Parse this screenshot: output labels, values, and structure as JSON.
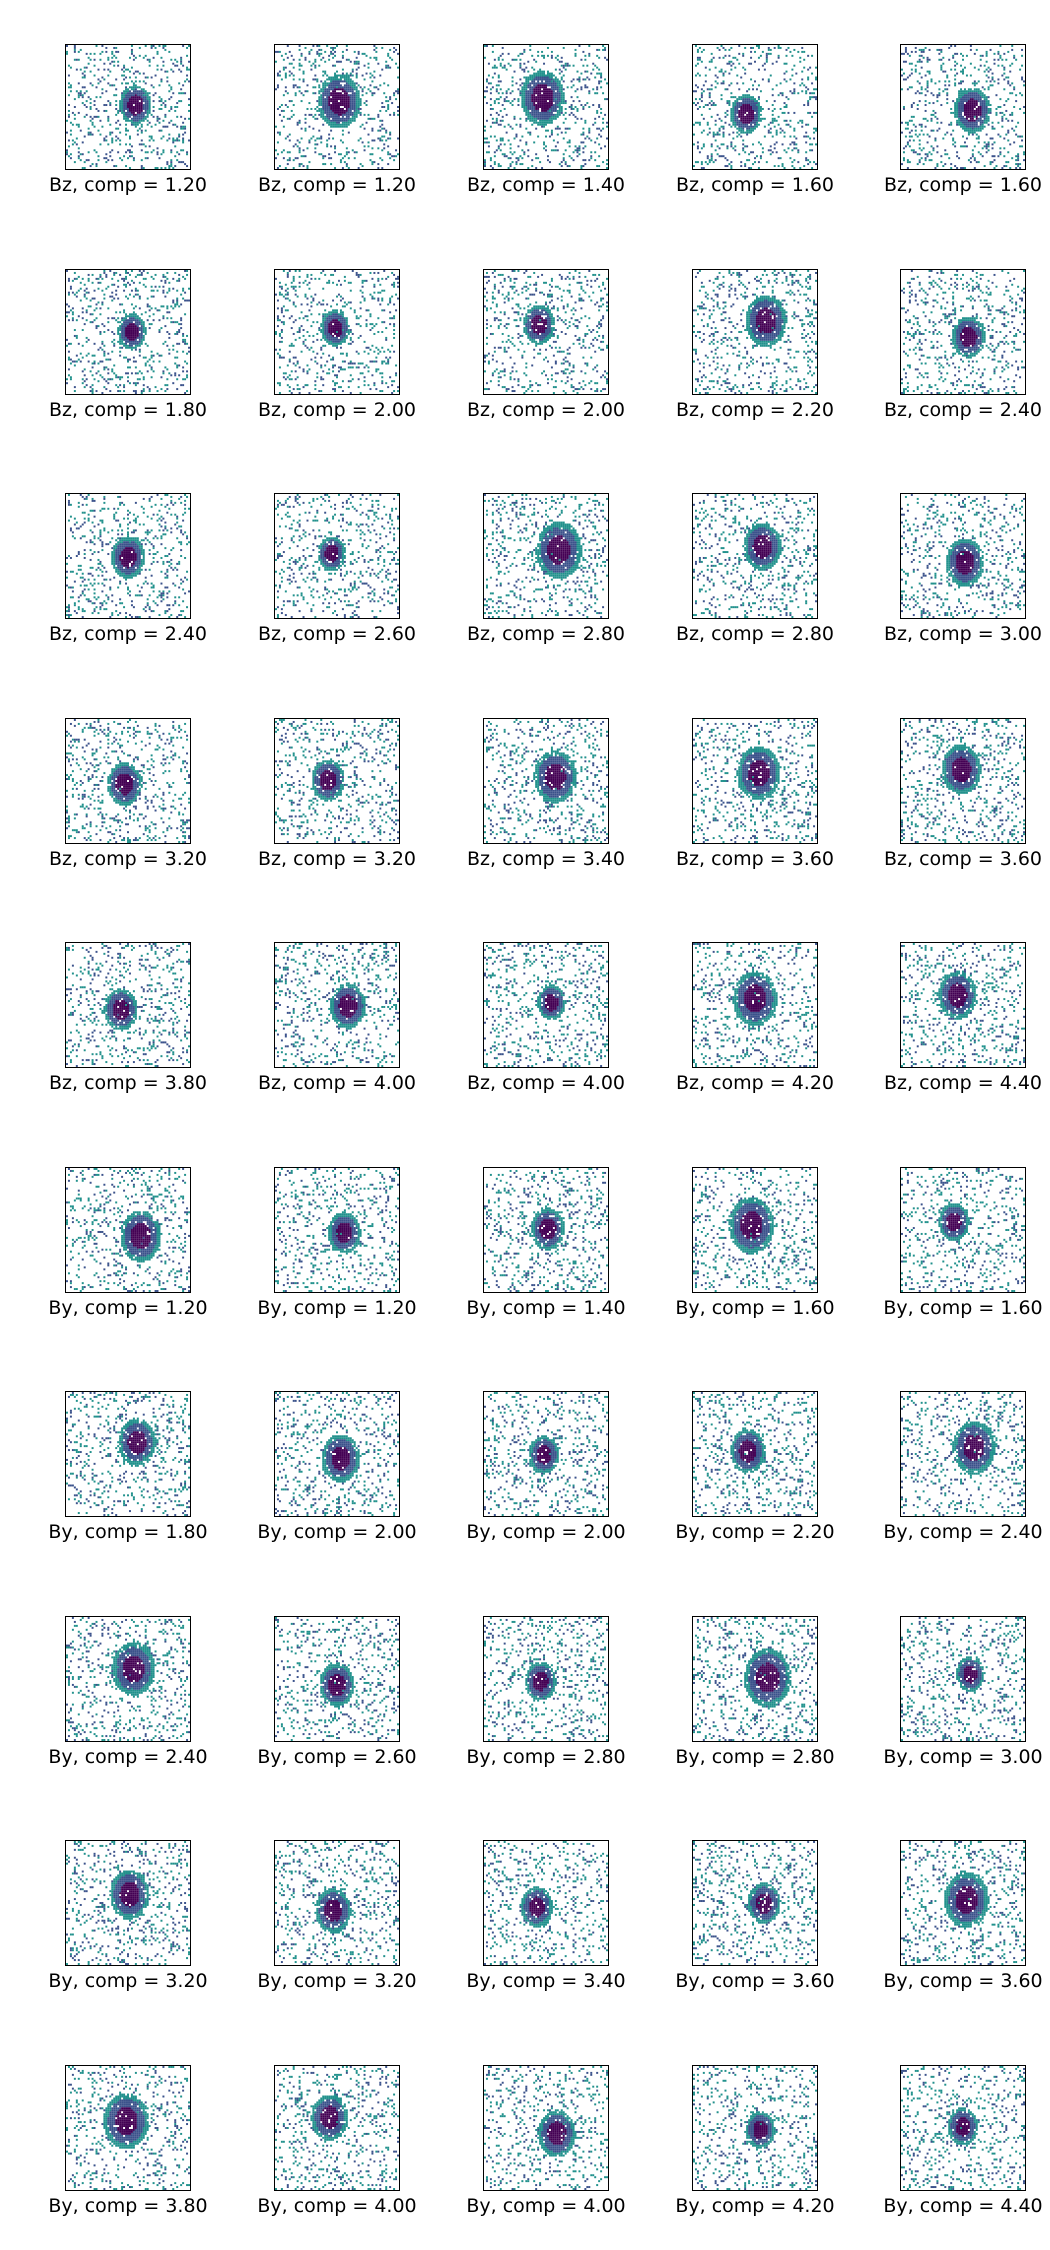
{
  "colormap": [
    "#440154",
    "#3b528b",
    "#21918c",
    "#5ec962"
  ],
  "background": "#ffffff",
  "panels": [
    {
      "label": "Bz, comp = 1.20"
    },
    {
      "label": "Bz, comp = 1.20"
    },
    {
      "label": "Bz, comp = 1.40"
    },
    {
      "label": "Bz, comp = 1.60"
    },
    {
      "label": "Bz, comp = 1.60"
    },
    {
      "label": "Bz, comp = 1.80"
    },
    {
      "label": "Bz, comp = 2.00"
    },
    {
      "label": "Bz, comp = 2.00"
    },
    {
      "label": "Bz, comp = 2.20"
    },
    {
      "label": "Bz, comp = 2.40"
    },
    {
      "label": "Bz, comp = 2.40"
    },
    {
      "label": "Bz, comp = 2.60"
    },
    {
      "label": "Bz, comp = 2.80"
    },
    {
      "label": "Bz, comp = 2.80"
    },
    {
      "label": "Bz, comp = 3.00"
    },
    {
      "label": "Bz, comp = 3.20"
    },
    {
      "label": "Bz, comp = 3.20"
    },
    {
      "label": "Bz, comp = 3.40"
    },
    {
      "label": "Bz, comp = 3.60"
    },
    {
      "label": "Bz, comp = 3.60"
    },
    {
      "label": "Bz, comp = 3.80"
    },
    {
      "label": "Bz, comp = 4.00"
    },
    {
      "label": "Bz, comp = 4.00"
    },
    {
      "label": "Bz, comp = 4.20"
    },
    {
      "label": "Bz, comp = 4.40"
    },
    {
      "label": "By, comp = 1.20"
    },
    {
      "label": "By, comp = 1.20"
    },
    {
      "label": "By, comp = 1.40"
    },
    {
      "label": "By, comp = 1.60"
    },
    {
      "label": "By, comp = 1.60"
    },
    {
      "label": "By, comp = 1.80"
    },
    {
      "label": "By, comp = 2.00"
    },
    {
      "label": "By, comp = 2.00"
    },
    {
      "label": "By, comp = 2.20"
    },
    {
      "label": "By, comp = 2.40"
    },
    {
      "label": "By, comp = 2.40"
    },
    {
      "label": "By, comp = 2.60"
    },
    {
      "label": "By, comp = 2.80"
    },
    {
      "label": "By, comp = 2.80"
    },
    {
      "label": "By, comp = 3.00"
    },
    {
      "label": "By, comp = 3.20"
    },
    {
      "label": "By, comp = 3.20"
    },
    {
      "label": "By, comp = 3.40"
    },
    {
      "label": "By, comp = 3.60"
    },
    {
      "label": "By, comp = 3.60"
    },
    {
      "label": "By, comp = 3.80"
    },
    {
      "label": "By, comp = 4.00"
    },
    {
      "label": "By, comp = 4.00"
    },
    {
      "label": "By, comp = 4.20"
    },
    {
      "label": "By, comp = 4.40"
    }
  ]
}
